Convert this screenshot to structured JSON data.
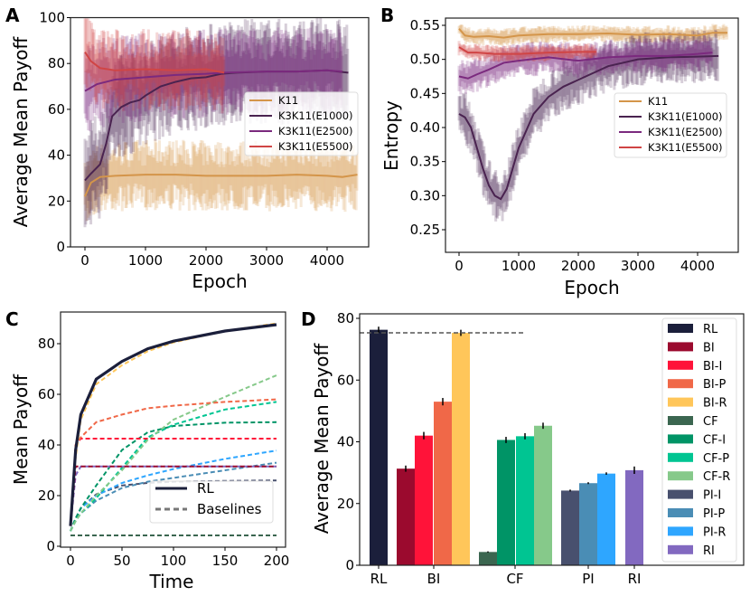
{
  "chart_data": [
    {
      "panel": "A",
      "type": "line",
      "xlabel": "Epoch",
      "ylabel": "Average Mean Payoff",
      "xlim": [
        0,
        4500
      ],
      "ylim": [
        0,
        100
      ],
      "xticks": [
        "0",
        "1000",
        "2000",
        "3000",
        "4000"
      ],
      "yticks": [
        "0",
        "20",
        "40",
        "60",
        "80",
        "100"
      ],
      "legend_position": "center-right",
      "series": [
        {
          "name": "K11",
          "color": "#d4954a",
          "spread": 12,
          "x": [
            0,
            100,
            250,
            500,
            1000,
            1500,
            2000,
            2500,
            3000,
            3500,
            4000,
            4250,
            4500
          ],
          "y": [
            22,
            28,
            30.5,
            31,
            31.5,
            31.5,
            31,
            31,
            31,
            31.5,
            31,
            30.5,
            31.5
          ]
        },
        {
          "name": "K3K11(E1000)",
          "color": "#4a2350",
          "spread": 18,
          "x": [
            0,
            100,
            250,
            350,
            450,
            600,
            750,
            900,
            1000,
            1250,
            1500,
            1750,
            2000,
            2250,
            2500,
            3000,
            3500,
            4000,
            4350
          ],
          "y": [
            29,
            32,
            36,
            45,
            57,
            61,
            63,
            64,
            66,
            70,
            72,
            73.5,
            74,
            75.5,
            76,
            76.5,
            76.5,
            77,
            76
          ]
        },
        {
          "name": "K3K11(E2500)",
          "color": "#7b2a7e",
          "spread": 15,
          "x": [
            0,
            200,
            500,
            1000,
            1500,
            2000,
            2300,
            3000,
            3500,
            4000,
            4250
          ],
          "y": [
            68,
            71,
            73,
            74,
            75,
            75.5,
            76,
            76.5,
            76.5,
            77,
            76.5
          ]
        },
        {
          "name": "K3K11(E5500)",
          "color": "#d04545",
          "spread": 14,
          "x": [
            0,
            100,
            250,
            500,
            1000,
            1500,
            2000,
            2300
          ],
          "y": [
            85,
            81,
            78,
            77,
            77.5,
            77,
            77.5,
            76
          ]
        }
      ]
    },
    {
      "panel": "B",
      "type": "line",
      "xlabel": "Epoch",
      "ylabel": "Entropy",
      "xlim": [
        0,
        4500
      ],
      "ylim": [
        0.22,
        0.56
      ],
      "xticks": [
        "0",
        "1000",
        "2000",
        "3000",
        "4000"
      ],
      "yticks": [
        "0.25",
        "0.30",
        "0.35",
        "0.40",
        "0.45",
        "0.50",
        "0.55"
      ],
      "legend_position": "center-right",
      "series": [
        {
          "name": "K11",
          "color": "#d4954a",
          "spread": 0.01,
          "x": [
            0,
            100,
            250,
            500,
            750,
            1000,
            1500,
            2000,
            2500,
            3000,
            3500,
            4000,
            4250,
            4500
          ],
          "y": [
            0.545,
            0.535,
            0.533,
            0.534,
            0.532,
            0.535,
            0.537,
            0.537,
            0.538,
            0.536,
            0.537,
            0.535,
            0.539,
            0.539
          ]
        },
        {
          "name": "K3K11(E1000)",
          "color": "#4a2350",
          "spread": 0.03,
          "x": [
            0,
            100,
            200,
            300,
            400,
            500,
            600,
            700,
            800,
            900,
            1000,
            1250,
            1500,
            1750,
            2000,
            2500,
            3000,
            3500,
            4000,
            4350
          ],
          "y": [
            0.42,
            0.415,
            0.4,
            0.37,
            0.34,
            0.315,
            0.3,
            0.295,
            0.31,
            0.34,
            0.37,
            0.42,
            0.445,
            0.46,
            0.47,
            0.49,
            0.5,
            0.503,
            0.504,
            0.505
          ]
        },
        {
          "name": "K3K11(E2500)",
          "color": "#7b2a7e",
          "spread": 0.02,
          "x": [
            0,
            150,
            300,
            500,
            750,
            1000,
            1500,
            2000,
            2500,
            3000,
            3500,
            4000,
            4250
          ],
          "y": [
            0.475,
            0.472,
            0.478,
            0.485,
            0.495,
            0.498,
            0.503,
            0.498,
            0.503,
            0.505,
            0.505,
            0.508,
            0.51
          ]
        },
        {
          "name": "K3K11(E5500)",
          "color": "#d04545",
          "spread": 0.01,
          "x": [
            0,
            150,
            300,
            600,
            1000,
            1500,
            2000,
            2300
          ],
          "y": [
            0.518,
            0.51,
            0.51,
            0.508,
            0.508,
            0.51,
            0.511,
            0.511
          ]
        }
      ]
    },
    {
      "panel": "C",
      "type": "line",
      "xlabel": "Time",
      "ylabel": "Mean Payoff",
      "xlim": [
        -8,
        208
      ],
      "ylim": [
        0,
        90
      ],
      "xticks": [
        "0",
        "50",
        "100",
        "150",
        "200"
      ],
      "yticks": [
        "0",
        "20",
        "40",
        "60",
        "80"
      ],
      "legend_position": "lower-right",
      "legend": [
        {
          "label": "RL",
          "style": "solid",
          "color": "#1b1f3b"
        },
        {
          "label": "Baselines",
          "style": "dashed",
          "color": "#777777"
        }
      ],
      "x": [
        0,
        5,
        10,
        25,
        50,
        75,
        100,
        150,
        200
      ],
      "series": [
        {
          "id": "RL",
          "style": "solid",
          "color": "#1b1f3b",
          "y": [
            8,
            38,
            52,
            66,
            73,
            78,
            81,
            85,
            87.5
          ]
        },
        {
          "id": "BI-R",
          "style": "dashed",
          "color": "#ffc65a",
          "y": [
            8,
            35,
            50,
            64,
            71.5,
            77,
            80.5,
            85,
            88
          ]
        },
        {
          "id": "BI-P",
          "style": "dashed",
          "color": "#f06848",
          "y": [
            8,
            40,
            43,
            49,
            52,
            54.5,
            55.5,
            57,
            58
          ]
        },
        {
          "id": "BI-I",
          "style": "dashed",
          "color": "#ff1339",
          "y": [
            8,
            40,
            42.5,
            42.5,
            42.5,
            42.5,
            42.5,
            42.5,
            42.5
          ]
        },
        {
          "id": "BI",
          "style": "dashed",
          "color": "#9b0a2e",
          "y": [
            8,
            31.5,
            31.5,
            31.5,
            31.5,
            31.5,
            31.5,
            31.5,
            31.5
          ]
        },
        {
          "id": "RI",
          "style": "dashed",
          "color": "#8269c0",
          "y": [
            8,
            28,
            31.5,
            31.5,
            31.5,
            31.5,
            31.5,
            31.5,
            31.5
          ]
        },
        {
          "id": "CF-R",
          "style": "dashed",
          "color": "#86c98a",
          "y": [
            6,
            10,
            13,
            20,
            30,
            42,
            50,
            59,
            67.5
          ]
        },
        {
          "id": "CF-P",
          "style": "dashed",
          "color": "#00c592",
          "y": [
            6,
            10,
            13,
            19,
            31,
            43,
            48,
            54,
            57
          ]
        },
        {
          "id": "CF-I",
          "style": "dashed",
          "color": "#009466",
          "y": [
            6,
            11,
            15,
            24,
            38,
            45,
            47.5,
            48.8,
            49
          ]
        },
        {
          "id": "CF",
          "style": "dashed",
          "color": "#3b6650",
          "y": [
            4.3,
            4.3,
            4.3,
            4.3,
            4.3,
            4.3,
            4.3,
            4.3,
            4.3
          ]
        },
        {
          "id": "PI-R",
          "style": "dashed",
          "color": "#2ea6ff",
          "y": [
            6,
            11,
            15,
            20,
            25,
            28,
            30.5,
            34.5,
            37.8
          ]
        },
        {
          "id": "PI-P",
          "style": "dashed",
          "color": "#4a8db5",
          "y": [
            6,
            10,
            13,
            18,
            23,
            25.5,
            27,
            30,
            33
          ]
        },
        {
          "id": "PI-I",
          "style": "dashed",
          "color": "#48506e",
          "y": [
            6,
            11,
            15,
            20.5,
            24,
            25,
            25.5,
            25.8,
            26
          ]
        }
      ]
    },
    {
      "panel": "D",
      "type": "bar",
      "ylabel": "Average Mean Payoff",
      "ylim": [
        0,
        80
      ],
      "yticks": [
        "0",
        "20",
        "40",
        "60",
        "80"
      ],
      "group_labels": [
        "RL",
        "BI",
        "CF",
        "PI",
        "RI"
      ],
      "legend_position": "right",
      "reference_line": 75.3,
      "categories": [
        "RL",
        "BI",
        "BI-I",
        "BI-P",
        "BI-R",
        "CF",
        "CF-I",
        "CF-P",
        "CF-R",
        "PI-I",
        "PI-P",
        "PI-R",
        "RI"
      ],
      "values": [
        76.3,
        31.3,
        42,
        53,
        75.3,
        4.3,
        40.6,
        41.8,
        45.2,
        24.2,
        26.6,
        29.7,
        30.8
      ],
      "errors": [
        1,
        1,
        1.2,
        1.2,
        1,
        0.2,
        1,
        1,
        1,
        0.3,
        0.3,
        0.4,
        1.2
      ],
      "colors": [
        "#1b1f3b",
        "#9b0a2e",
        "#ff1339",
        "#f06848",
        "#ffc65a",
        "#3b6650",
        "#009466",
        "#00c592",
        "#86c98a",
        "#48506e",
        "#4a8db5",
        "#2ea6ff",
        "#8269c0"
      ]
    }
  ]
}
